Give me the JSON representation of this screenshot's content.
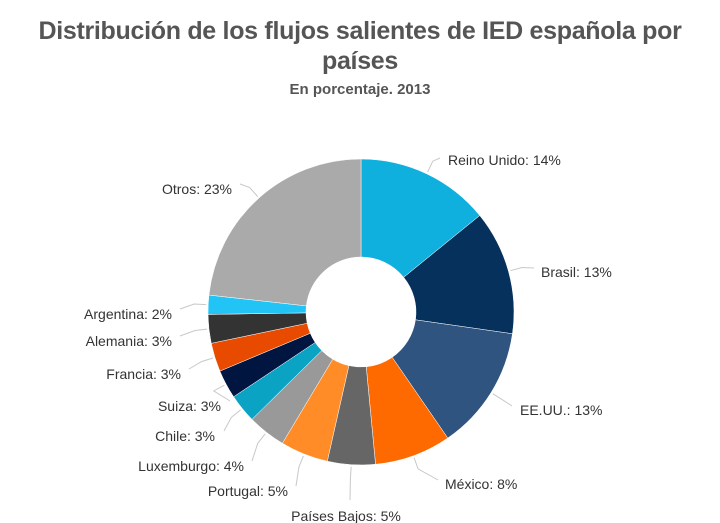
{
  "chart_data": {
    "type": "pie",
    "variant": "donut",
    "title": "Distribución de los flujos salientes de IED española por países",
    "subtitle": "En porcentaje. 2013",
    "unit": "%",
    "slices": [
      {
        "label": "Reino Unido",
        "value": 14,
        "color": "#0fb0de"
      },
      {
        "label": "Brasil",
        "value": 13,
        "color": "#05315c"
      },
      {
        "label": "EE.UU.",
        "value": 13,
        "color": "#2e547f"
      },
      {
        "label": "México",
        "value": 8,
        "color": "#ff6a00"
      },
      {
        "label": "Países Bajos",
        "value": 5,
        "color": "#666666"
      },
      {
        "label": "Portugal",
        "value": 5,
        "color": "#ff8c26"
      },
      {
        "label": "Luxemburgo",
        "value": 4,
        "color": "#999999"
      },
      {
        "label": "Chile",
        "value": 3,
        "color": "#0aa3c4"
      },
      {
        "label": "Suiza",
        "value": 3,
        "color": "#001540"
      },
      {
        "label": "Francia",
        "value": 3,
        "color": "#e84a00"
      },
      {
        "label": "Alemania",
        "value": 3,
        "color": "#333333"
      },
      {
        "label": "Argentina",
        "value": 2,
        "color": "#22c4f5"
      },
      {
        "label": "Otros",
        "value": 23,
        "color": "#aaaaaa"
      }
    ]
  }
}
